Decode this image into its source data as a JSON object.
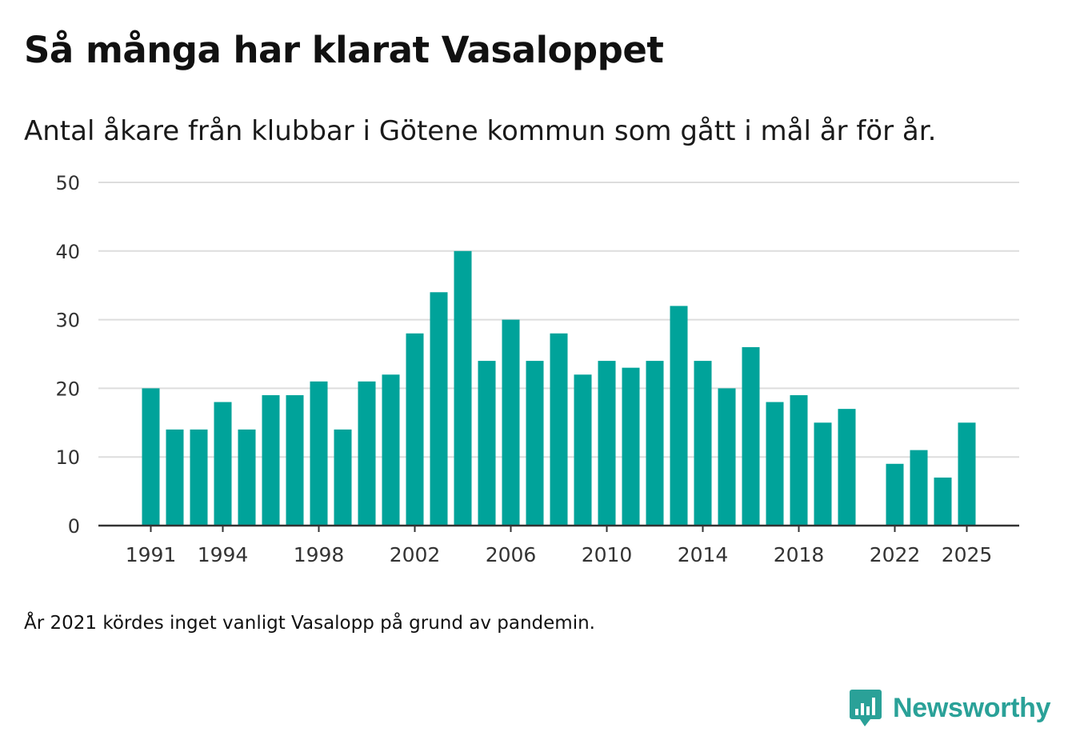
{
  "title": "Så många har klarat Vasaloppet",
  "subtitle": "Antal åkare från klubbar i Götene kommun som gått i mål år för år.",
  "footnote": "År 2021 kördes inget vanligt Vasalopp på grund av pandemin.",
  "brand": {
    "name": "Newsworthy",
    "icon": "newsworthy-logo-icon",
    "color": "#2aa198"
  },
  "colors": {
    "bar": "#00a39a",
    "grid": "#dddddd",
    "axis": "#333333"
  },
  "chart_data": {
    "type": "bar",
    "title": "Så många har klarat Vasaloppet",
    "xlabel": "",
    "ylabel": "",
    "ylim": [
      0,
      50
    ],
    "yticks": [
      0,
      10,
      20,
      30,
      40,
      50
    ],
    "grid": true,
    "x": [
      1991,
      1992,
      1993,
      1994,
      1995,
      1996,
      1997,
      1998,
      1999,
      2000,
      2001,
      2002,
      2003,
      2004,
      2005,
      2006,
      2007,
      2008,
      2009,
      2010,
      2011,
      2012,
      2013,
      2014,
      2015,
      2016,
      2017,
      2018,
      2019,
      2020,
      2021,
      2022,
      2023,
      2024,
      2025
    ],
    "values": [
      20,
      14,
      14,
      18,
      14,
      19,
      19,
      21,
      14,
      21,
      22,
      28,
      34,
      40,
      24,
      30,
      24,
      28,
      22,
      24,
      23,
      24,
      32,
      24,
      20,
      26,
      18,
      19,
      15,
      17,
      null,
      9,
      11,
      7,
      15
    ],
    "xtick_labels": [
      "1991",
      "1994",
      "1998",
      "2002",
      "2006",
      "2010",
      "2014",
      "2018",
      "2022",
      "2025"
    ]
  }
}
